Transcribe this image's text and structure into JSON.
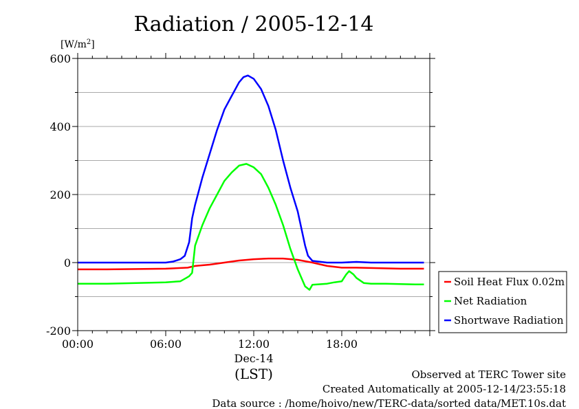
{
  "chart_data": {
    "type": "line",
    "title": "Radiation / 2005-12-14",
    "ylabel_unit": "[W/m2]",
    "ylim": [
      -200,
      600
    ],
    "y_ticks": [
      -200,
      0,
      200,
      400,
      600
    ],
    "y_tick_labels": [
      "-200",
      "0",
      "200",
      "400",
      "600"
    ],
    "xlim_hours": [
      0,
      24
    ],
    "x_ticks_hours": [
      0,
      6,
      12,
      18
    ],
    "x_tick_labels": [
      "00:00",
      "06:00",
      "12:00",
      "18:00"
    ],
    "x_date_label": "Dec-14",
    "x_axis_label": "(LST)",
    "grid": true,
    "legend_position": "bottom-right-outside",
    "series": [
      {
        "name": "Soil Heat Flux 0.02m",
        "color": "#ff0000",
        "x": [
          0,
          2,
          4,
          6,
          7.5,
          8,
          9,
          10,
          11,
          12,
          13,
          14,
          15,
          16,
          17,
          18,
          19,
          20,
          21,
          22,
          23,
          23.6
        ],
        "y": [
          -20,
          -20,
          -19,
          -18,
          -15,
          -10,
          -6,
          0,
          6,
          10,
          12,
          12,
          8,
          0,
          -10,
          -15,
          -15,
          -16,
          -17,
          -18,
          -18,
          -18
        ]
      },
      {
        "name": "Net Radiation",
        "color": "#00ff00",
        "x": [
          0,
          2,
          4,
          6,
          7,
          7.4,
          7.6,
          7.8,
          8,
          8.5,
          9,
          9.5,
          10,
          10.5,
          11,
          11.5,
          12,
          12.5,
          13,
          13.5,
          14,
          14.5,
          15,
          15.5,
          15.8,
          16,
          17,
          17.5,
          18,
          18.3,
          18.5,
          18.8,
          19,
          19.5,
          20,
          21,
          22,
          23,
          23.6
        ],
        "y": [
          -62,
          -62,
          -60,
          -58,
          -55,
          -45,
          -40,
          -30,
          50,
          110,
          160,
          200,
          240,
          265,
          285,
          290,
          280,
          260,
          220,
          170,
          110,
          40,
          -20,
          -70,
          -80,
          -65,
          -62,
          -58,
          -55,
          -35,
          -25,
          -35,
          -45,
          -60,
          -62,
          -62,
          -63,
          -64,
          -64
        ]
      },
      {
        "name": "Shortwave Radiation",
        "color": "#0000ff",
        "x": [
          0,
          2,
          4,
          6,
          6.5,
          7,
          7.3,
          7.6,
          7.8,
          8,
          8.5,
          9,
          9.5,
          10,
          10.5,
          11,
          11.3,
          11.6,
          12,
          12.5,
          13,
          13.5,
          14,
          14.5,
          15,
          15.5,
          15.7,
          16,
          17,
          18,
          19,
          20,
          21,
          22,
          23,
          23.6
        ],
        "y": [
          0,
          0,
          0,
          0,
          3,
          10,
          20,
          60,
          130,
          170,
          250,
          320,
          390,
          450,
          490,
          530,
          545,
          550,
          540,
          510,
          460,
          390,
          300,
          220,
          150,
          50,
          20,
          5,
          0,
          0,
          2,
          0,
          0,
          0,
          0,
          0
        ]
      }
    ]
  },
  "footer": {
    "line1": "Observed at TERC Tower site",
    "line2": "Created Automatically at 2005-12-14/23:55:18",
    "line3": "Data source : /home/hoivo/new/TERC-data/sorted  data/MET.10s.dat"
  }
}
